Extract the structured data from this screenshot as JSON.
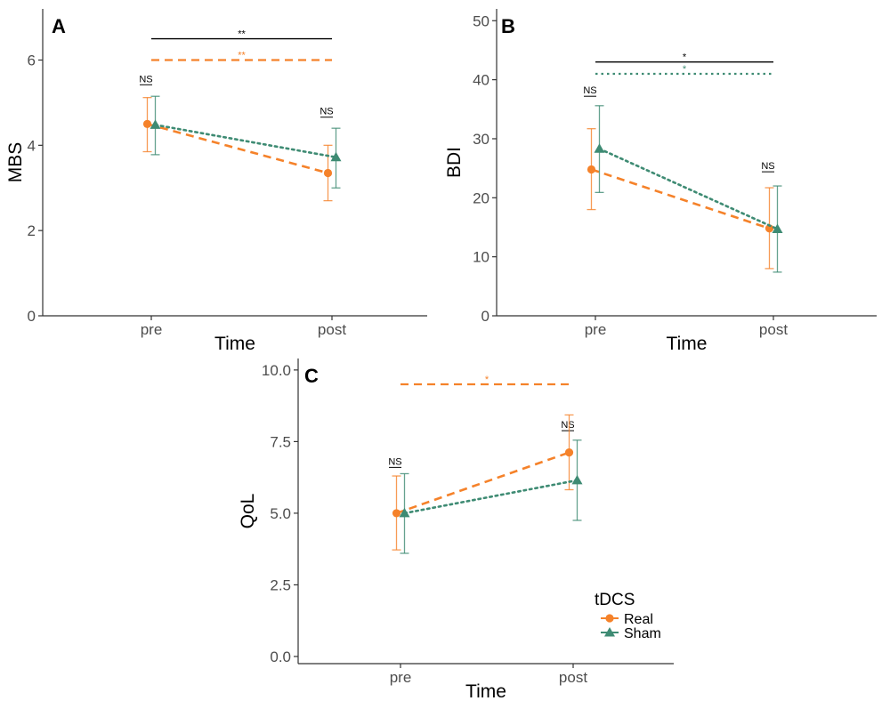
{
  "colors": {
    "real": "#F5822A",
    "sham": "#3E8B73",
    "bracket": "#000000",
    "axis": "#333333"
  },
  "legend": {
    "title": "tDCS",
    "items": [
      {
        "label": "Real",
        "shape": "circle",
        "color": "#F5822A"
      },
      {
        "label": "Sham",
        "shape": "triangle",
        "color": "#3E8B73"
      }
    ]
  },
  "chart_data": [
    {
      "panel": "A",
      "type": "line",
      "categories": [
        "pre",
        "post"
      ],
      "xlabel": "Time",
      "ylabel": "MBS",
      "ylim": [
        0,
        7.2
      ],
      "yticks": [
        0,
        2,
        4,
        6
      ],
      "ytick_labels": [
        "0",
        "2",
        "4",
        "6"
      ],
      "series": [
        {
          "name": "Real",
          "marker": "circle",
          "color": "#F5822A",
          "linestyle": "dashed",
          "values": [
            4.5,
            3.35
          ],
          "err_low": [
            3.85,
            2.7
          ],
          "err_high": [
            5.12,
            4.0
          ]
        },
        {
          "name": "Sham",
          "marker": "triangle",
          "color": "#3E8B73",
          "linestyle": "dotted",
          "values": [
            4.48,
            3.72
          ],
          "err_low": [
            3.78,
            3.0
          ],
          "err_high": [
            5.15,
            4.4
          ]
        }
      ],
      "significance": [
        {
          "kind": "bracket",
          "y": 6.5,
          "x_from": 0,
          "x_to": 1,
          "label": "**",
          "color": "#000000",
          "style": "solid"
        },
        {
          "kind": "bracket",
          "y": 6.0,
          "x_from": 0,
          "x_to": 1,
          "label": "**",
          "color": "#F5822A",
          "style": "dashed"
        },
        {
          "kind": "point",
          "x": 0,
          "y": 5.42,
          "label": "NS"
        },
        {
          "kind": "point",
          "x": 1,
          "y": 4.66,
          "label": "NS"
        }
      ]
    },
    {
      "panel": "B",
      "type": "line",
      "categories": [
        "pre",
        "post"
      ],
      "xlabel": "Time",
      "ylabel": "BDI",
      "ylim": [
        0,
        52
      ],
      "yticks": [
        0,
        10,
        20,
        30,
        40,
        50
      ],
      "ytick_labels": [
        "0",
        "10",
        "20",
        "30",
        "40",
        "50"
      ],
      "series": [
        {
          "name": "Real",
          "marker": "circle",
          "color": "#F5822A",
          "linestyle": "dashed",
          "values": [
            24.8,
            14.8
          ],
          "err_low": [
            18.0,
            8.0
          ],
          "err_high": [
            31.7,
            21.7
          ]
        },
        {
          "name": "Sham",
          "marker": "triangle",
          "color": "#3E8B73",
          "linestyle": "dotted",
          "values": [
            28.3,
            14.7
          ],
          "err_low": [
            20.9,
            7.4
          ],
          "err_high": [
            35.6,
            22.0
          ]
        }
      ],
      "significance": [
        {
          "kind": "bracket",
          "y": 43.0,
          "x_from": 0,
          "x_to": 1,
          "label": "*",
          "color": "#000000",
          "style": "solid"
        },
        {
          "kind": "bracket",
          "y": 41.0,
          "x_from": 0,
          "x_to": 1,
          "label": "*",
          "color": "#3E8B73",
          "style": "dotted"
        },
        {
          "kind": "point",
          "x": 0,
          "y": 37.2,
          "label": "NS"
        },
        {
          "kind": "point",
          "x": 1,
          "y": 24.4,
          "label": "NS"
        }
      ]
    },
    {
      "panel": "C",
      "type": "line",
      "categories": [
        "pre",
        "post"
      ],
      "xlabel": "Time",
      "ylabel": "QoL",
      "ylim": [
        -0.25,
        10.4
      ],
      "yticks": [
        0,
        2.5,
        5,
        7.5,
        10
      ],
      "ytick_labels": [
        "0.0",
        "2.5",
        "5.0",
        "7.5",
        "10.0"
      ],
      "series": [
        {
          "name": "Real",
          "marker": "circle",
          "color": "#F5822A",
          "linestyle": "dashed",
          "values": [
            5.0,
            7.12
          ],
          "err_low": [
            3.72,
            5.82
          ],
          "err_high": [
            6.3,
            8.43
          ]
        },
        {
          "name": "Sham",
          "marker": "triangle",
          "color": "#3E8B73",
          "linestyle": "dotted",
          "values": [
            5.0,
            6.15
          ],
          "err_low": [
            3.6,
            4.75
          ],
          "err_high": [
            6.38,
            7.55
          ]
        }
      ],
      "significance": [
        {
          "kind": "bracket",
          "y": 9.5,
          "x_from": 0,
          "x_to": 1,
          "label": "*",
          "color": "#F5822A",
          "style": "dashed"
        },
        {
          "kind": "point",
          "x": 0,
          "y": 6.6,
          "label": "NS"
        },
        {
          "kind": "point",
          "x": 1,
          "y": 7.88,
          "label": "NS"
        }
      ]
    }
  ]
}
